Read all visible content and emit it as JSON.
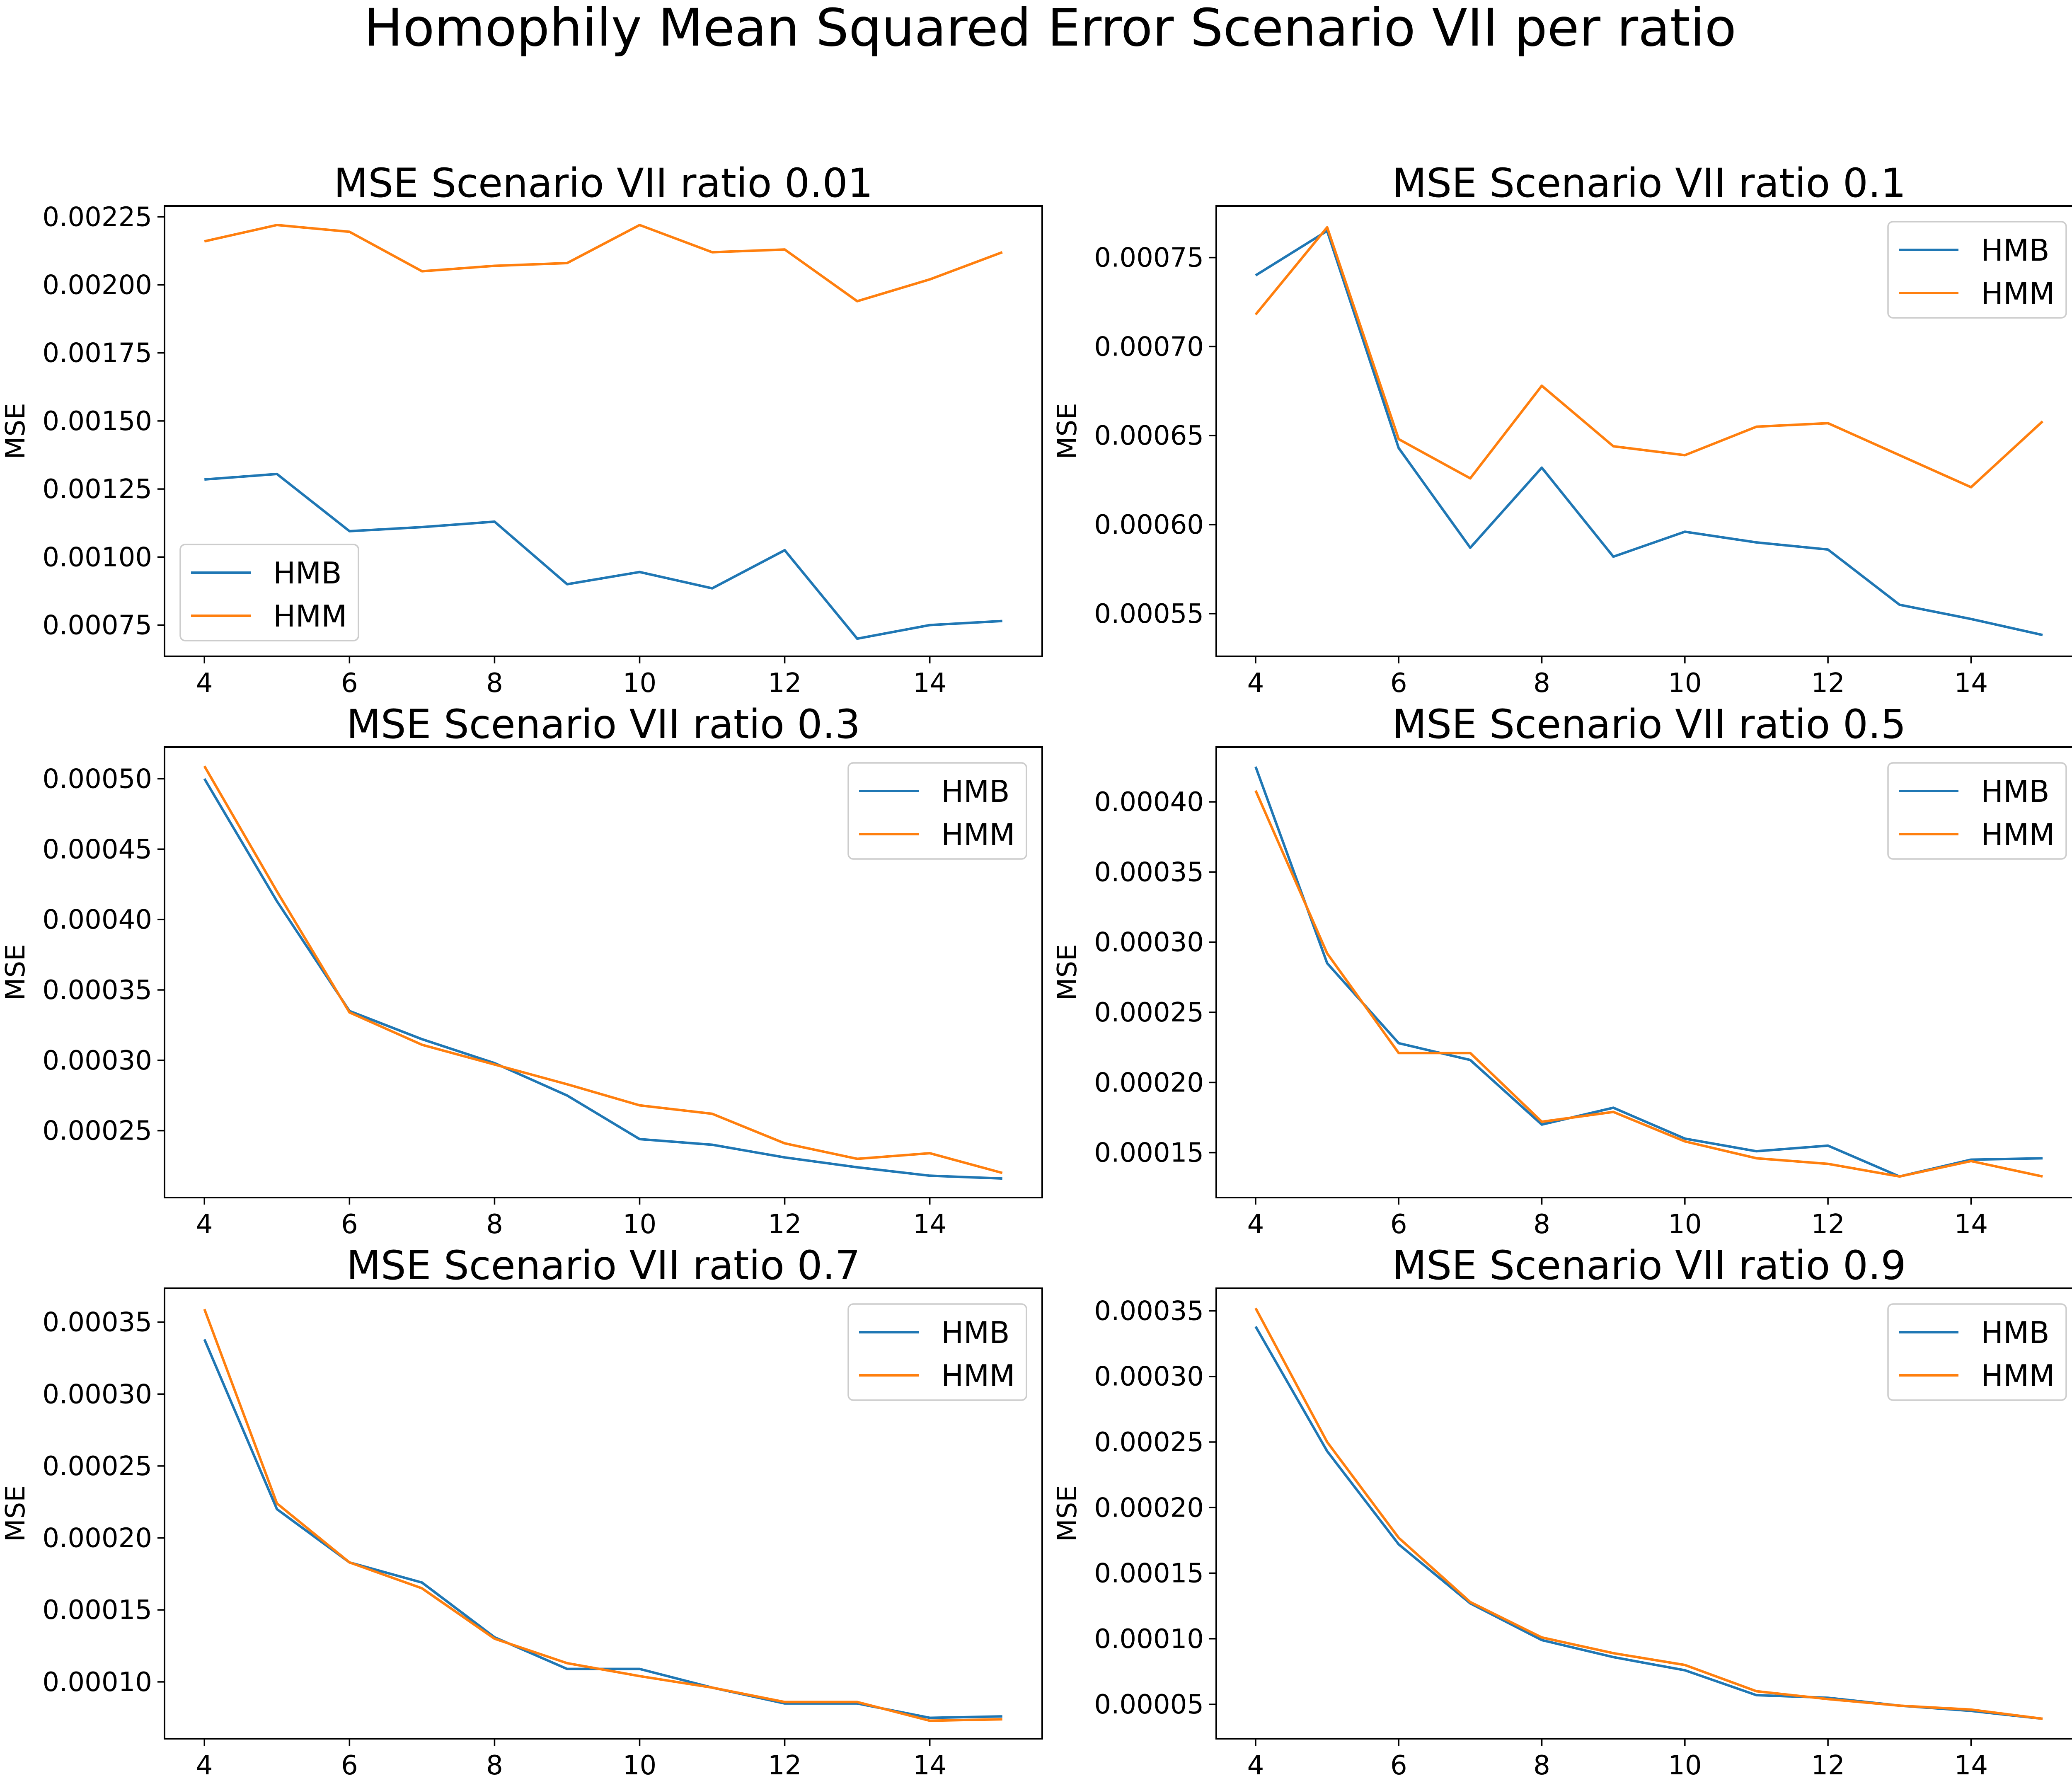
{
  "figure": {
    "suptitle": "Homophily Mean Squared Error Scenario VII per ratio"
  },
  "chart_data": [
    {
      "type": "line",
      "title": "MSE Scenario VII ratio 0.01",
      "xlabel": "",
      "ylabel": "MSE",
      "x": [
        4,
        5,
        6,
        7,
        8,
        9,
        10,
        11,
        12,
        13,
        14,
        15
      ],
      "xlim": [
        3.45,
        15.55
      ],
      "ylim": [
        0.000635,
        0.00229
      ],
      "xticks": [
        4,
        6,
        8,
        10,
        12,
        14
      ],
      "yticks": [
        0.00075,
        0.001,
        0.00125,
        0.0015,
        0.00175,
        0.002,
        0.00225
      ],
      "ytick_labels": [
        "0.00075",
        "0.00100",
        "0.00125",
        "0.00150",
        "0.00175",
        "0.00200",
        "0.00225"
      ],
      "legend_position": "lower-left",
      "grid": false,
      "series": [
        {
          "name": "HMB",
          "color": "#1f77b4",
          "values": [
            0.001285,
            0.001305,
            0.001095,
            0.00111,
            0.00113,
            0.0009,
            0.000945,
            0.000885,
            0.001025,
            0.0007,
            0.00075,
            0.000765
          ]
        },
        {
          "name": "HMM",
          "color": "#ff7f0e",
          "values": [
            0.00216,
            0.00222,
            0.002195,
            0.00205,
            0.00207,
            0.00208,
            0.00222,
            0.00212,
            0.00213,
            0.00194,
            0.00202,
            0.00212
          ]
        }
      ]
    },
    {
      "type": "line",
      "title": "MSE Scenario VII ratio 0.1",
      "xlabel": "",
      "ylabel": "MSE",
      "x": [
        4,
        5,
        6,
        7,
        8,
        9,
        10,
        11,
        12,
        13,
        14,
        15
      ],
      "xlim": [
        3.45,
        15.55
      ],
      "ylim": [
        0.000526,
        0.000779
      ],
      "xticks": [
        4,
        6,
        8,
        10,
        12,
        14
      ],
      "yticks": [
        0.00055,
        0.0006,
        0.00065,
        0.0007,
        0.00075
      ],
      "ytick_labels": [
        "0.00055",
        "0.00060",
        "0.00065",
        "0.00070",
        "0.00075"
      ],
      "legend_position": "upper-right",
      "grid": false,
      "series": [
        {
          "name": "HMB",
          "color": "#1f77b4",
          "values": [
            0.00074,
            0.000765,
            0.000643,
            0.000587,
            0.000632,
            0.000582,
            0.000596,
            0.00059,
            0.000586,
            0.000555,
            0.000547,
            0.000538
          ]
        },
        {
          "name": "HMM",
          "color": "#ff7f0e",
          "values": [
            0.000718,
            0.000767,
            0.000648,
            0.000626,
            0.000678,
            0.000644,
            0.000639,
            0.000655,
            0.000657,
            0.000639,
            0.000621,
            0.000658
          ]
        }
      ]
    },
    {
      "type": "line",
      "title": "MSE Scenario VII ratio 0.3",
      "xlabel": "",
      "ylabel": "MSE",
      "x": [
        4,
        5,
        6,
        7,
        8,
        9,
        10,
        11,
        12,
        13,
        14,
        15
      ],
      "xlim": [
        3.45,
        15.55
      ],
      "ylim": [
        0.0002025,
        0.0005225
      ],
      "xticks": [
        4,
        6,
        8,
        10,
        12,
        14
      ],
      "yticks": [
        0.00025,
        0.0003,
        0.00035,
        0.0004,
        0.00045,
        0.0005
      ],
      "ytick_labels": [
        "0.00025",
        "0.00030",
        "0.00035",
        "0.00040",
        "0.00045",
        "0.00050"
      ],
      "legend_position": "upper-right",
      "grid": false,
      "series": [
        {
          "name": "HMB",
          "color": "#1f77b4",
          "values": [
            0.0005,
            0.000413,
            0.000335,
            0.000315,
            0.000298,
            0.000275,
            0.000244,
            0.00024,
            0.000231,
            0.000224,
            0.000218,
            0.000216
          ]
        },
        {
          "name": "HMM",
          "color": "#ff7f0e",
          "values": [
            0.000509,
            0.00042,
            0.000334,
            0.000311,
            0.000297,
            0.000283,
            0.000268,
            0.000262,
            0.000241,
            0.00023,
            0.000234,
            0.00022
          ]
        }
      ]
    },
    {
      "type": "line",
      "title": "MSE Scenario VII ratio 0.5",
      "xlabel": "",
      "ylabel": "MSE",
      "x": [
        4,
        5,
        6,
        7,
        8,
        9,
        10,
        11,
        12,
        13,
        14,
        15
      ],
      "xlim": [
        3.45,
        15.55
      ],
      "ylim": [
        0.000118,
        0.000439
      ],
      "xticks": [
        4,
        6,
        8,
        10,
        12,
        14
      ],
      "yticks": [
        0.00015,
        0.0002,
        0.00025,
        0.0003,
        0.00035,
        0.0004
      ],
      "ytick_labels": [
        "0.00015",
        "0.00020",
        "0.00025",
        "0.00030",
        "0.00035",
        "0.00040"
      ],
      "legend_position": "upper-right",
      "grid": false,
      "series": [
        {
          "name": "HMB",
          "color": "#1f77b4",
          "values": [
            0.000425,
            0.000285,
            0.000228,
            0.000216,
            0.00017,
            0.000182,
            0.00016,
            0.000151,
            0.000155,
            0.000133,
            0.000145,
            0.000146
          ]
        },
        {
          "name": "HMM",
          "color": "#ff7f0e",
          "values": [
            0.000408,
            0.000292,
            0.000221,
            0.000221,
            0.000172,
            0.000179,
            0.000158,
            0.000146,
            0.000142,
            0.000133,
            0.000144,
            0.000133
          ]
        }
      ]
    },
    {
      "type": "line",
      "title": "MSE Scenario VII ratio 0.7",
      "xlabel": "",
      "ylabel": "MSE",
      "x": [
        4,
        5,
        6,
        7,
        8,
        9,
        10,
        11,
        12,
        13,
        14,
        15
      ],
      "xlim": [
        3.45,
        15.55
      ],
      "ylim": [
        6.05e-05,
        0.0003735
      ],
      "xticks": [
        4,
        6,
        8,
        10,
        12,
        14
      ],
      "yticks": [
        0.0001,
        0.00015,
        0.0002,
        0.00025,
        0.0003,
        0.00035
      ],
      "ytick_labels": [
        "0.00010",
        "0.00015",
        "0.00020",
        "0.00025",
        "0.00030",
        "0.00035"
      ],
      "legend_position": "upper-right",
      "grid": false,
      "series": [
        {
          "name": "HMB",
          "color": "#1f77b4",
          "values": [
            0.000338,
            0.00022,
            0.000183,
            0.000169,
            0.000131,
            0.000109,
            0.000109,
            9.6e-05,
            8.5e-05,
            8.5e-05,
            7.5e-05,
            7.6e-05
          ]
        },
        {
          "name": "HMM",
          "color": "#ff7f0e",
          "values": [
            0.000359,
            0.000224,
            0.000183,
            0.000165,
            0.00013,
            0.000113,
            0.000104,
            9.6e-05,
            8.6e-05,
            8.6e-05,
            7.3e-05,
            7.4e-05
          ]
        }
      ]
    },
    {
      "type": "line",
      "title": "MSE Scenario VII ratio 0.9",
      "xlabel": "",
      "ylabel": "MSE",
      "x": [
        4,
        5,
        6,
        7,
        8,
        9,
        10,
        11,
        12,
        13,
        14,
        15
      ],
      "xlim": [
        3.45,
        15.55
      ],
      "ylim": [
        2.38e-05,
        0.0003672
      ],
      "xticks": [
        4,
        6,
        8,
        10,
        12,
        14
      ],
      "yticks": [
        5e-05,
        0.0001,
        0.00015,
        0.0002,
        0.00025,
        0.0003,
        0.00035
      ],
      "ytick_labels": [
        "0.00005",
        "0.00010",
        "0.00015",
        "0.00020",
        "0.00025",
        "0.00030",
        "0.00035"
      ],
      "legend_position": "upper-right",
      "grid": false,
      "series": [
        {
          "name": "HMB",
          "color": "#1f77b4",
          "values": [
            0.000338,
            0.000243,
            0.000172,
            0.000127,
            9.9e-05,
            8.6e-05,
            7.6e-05,
            5.7e-05,
            5.5e-05,
            4.9e-05,
            4.5e-05,
            3.9e-05
          ]
        },
        {
          "name": "HMM",
          "color": "#ff7f0e",
          "values": [
            0.000352,
            0.00025,
            0.000177,
            0.000128,
            0.000101,
            8.9e-05,
            8e-05,
            6e-05,
            5.4e-05,
            4.9e-05,
            4.6e-05,
            3.9e-05
          ]
        }
      ]
    }
  ]
}
